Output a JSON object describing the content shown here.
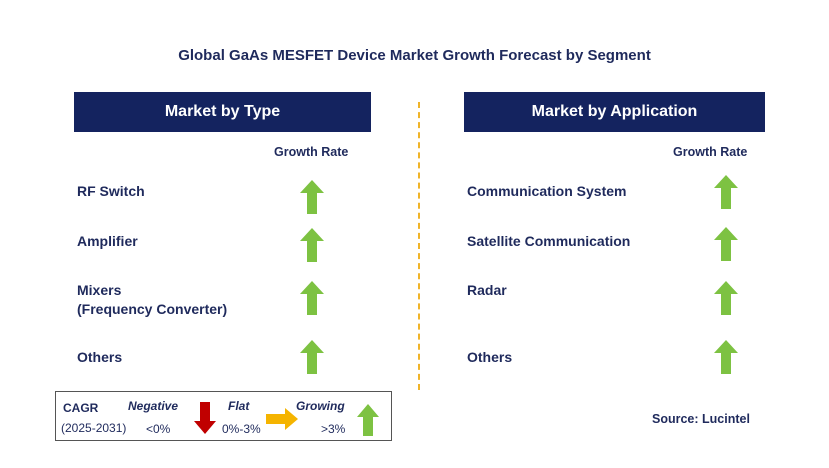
{
  "title": "Global GaAs MESFET Device Market Growth Forecast by Segment",
  "type_panel": {
    "header": "Market by Type",
    "growth_label": "Growth Rate",
    "items": [
      {
        "label": "RF Switch",
        "trend": "growing"
      },
      {
        "label": "Amplifier",
        "trend": "growing"
      },
      {
        "label": "Mixers\n(Frequency Converter)",
        "trend": "growing"
      },
      {
        "label": "Others",
        "trend": "growing"
      }
    ]
  },
  "application_panel": {
    "header": "Market by Application",
    "growth_label": "Growth Rate",
    "items": [
      {
        "label": "Communication System",
        "trend": "growing"
      },
      {
        "label": "Satellite Communication",
        "trend": "growing"
      },
      {
        "label": "Radar",
        "trend": "growing"
      },
      {
        "label": "Others",
        "trend": "growing"
      }
    ]
  },
  "legend": {
    "cagr_label": "CAGR",
    "period": "(2025-2031)",
    "negative_label": "Negative",
    "negative_range": "<0%",
    "flat_label": "Flat",
    "flat_range": "0%-3%",
    "growing_label": "Growing",
    "growing_range": ">3%"
  },
  "source": "Source: Lucintel",
  "colors": {
    "header_bg": "#14235f",
    "text": "#1f2a5c",
    "growing": "#7dc242",
    "negative": "#c00000",
    "flat": "#f5b400",
    "divider": "#f0b429"
  }
}
